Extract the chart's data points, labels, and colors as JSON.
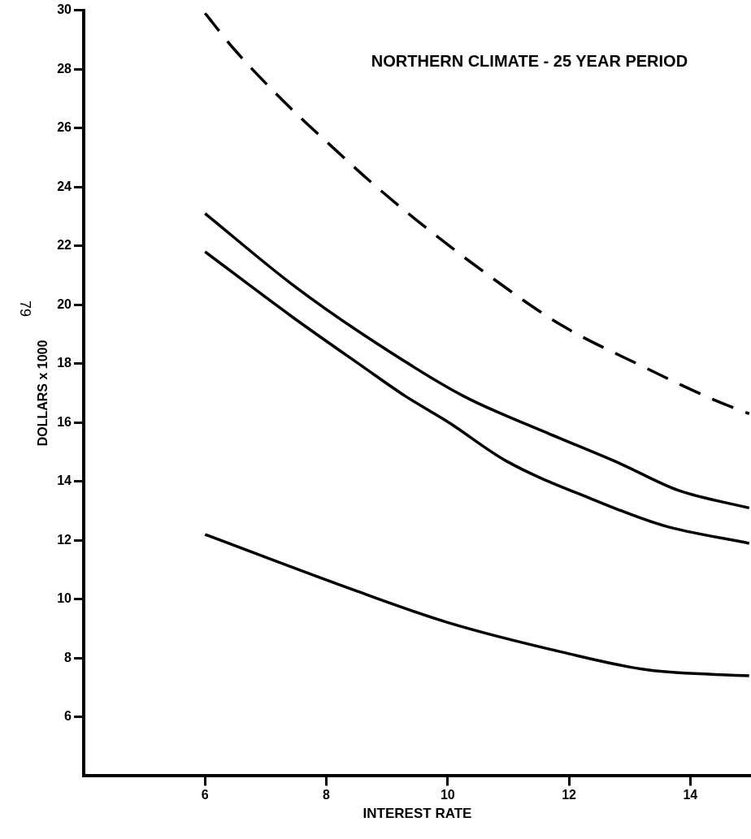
{
  "chart_data": {
    "type": "line",
    "title": "NORTHERN CLIMATE - 25 YEAR PERIOD",
    "xlabel": "INTEREST RATE",
    "ylabel": "DOLLARS x 1000",
    "annotations": [
      "79"
    ],
    "xlim": [
      4,
      15
    ],
    "xticks": [
      6,
      8,
      10,
      12,
      14
    ],
    "ylim": [
      4,
      30
    ],
    "yticks": [
      6,
      8,
      10,
      12,
      14,
      16,
      18,
      20,
      22,
      24,
      26,
      28,
      30
    ],
    "grid": false,
    "legend": false,
    "marker": "none",
    "series": [
      {
        "color": "#000000",
        "line_style": "dashed",
        "x": [
          6,
          6.47,
          7.3,
          8.34,
          8.66,
          9.47,
          10.74,
          11.88,
          13.12,
          14.36,
          14.97
        ],
        "values": [
          29.9,
          28.7,
          26.9,
          24.9,
          24.3,
          22.9,
          20.9,
          19.3,
          18.0,
          16.8,
          16.3
        ]
      },
      {
        "color": "#000000",
        "line_style": "solid",
        "x": [
          6,
          7.43,
          8.6,
          10.26,
          11.58,
          12.85,
          13.8,
          14.97
        ],
        "values": [
          23.1,
          20.7,
          19.0,
          16.9,
          15.7,
          14.6,
          13.7,
          13.1
        ]
      },
      {
        "color": "#000000",
        "line_style": "solid",
        "x": [
          6,
          7.43,
          8.6,
          9.3,
          10.02,
          10.96,
          12.38,
          13.56,
          14.97
        ],
        "values": [
          21.8,
          19.6,
          17.9,
          16.9,
          16.0,
          14.7,
          13.4,
          12.5,
          11.9
        ]
      },
      {
        "color": "#000000",
        "line_style": "solid",
        "x": [
          6,
          8.47,
          10.02,
          11.9,
          13.3,
          14.97
        ],
        "values": [
          12.2,
          10.3,
          9.2,
          8.2,
          7.6,
          7.4
        ]
      }
    ]
  }
}
